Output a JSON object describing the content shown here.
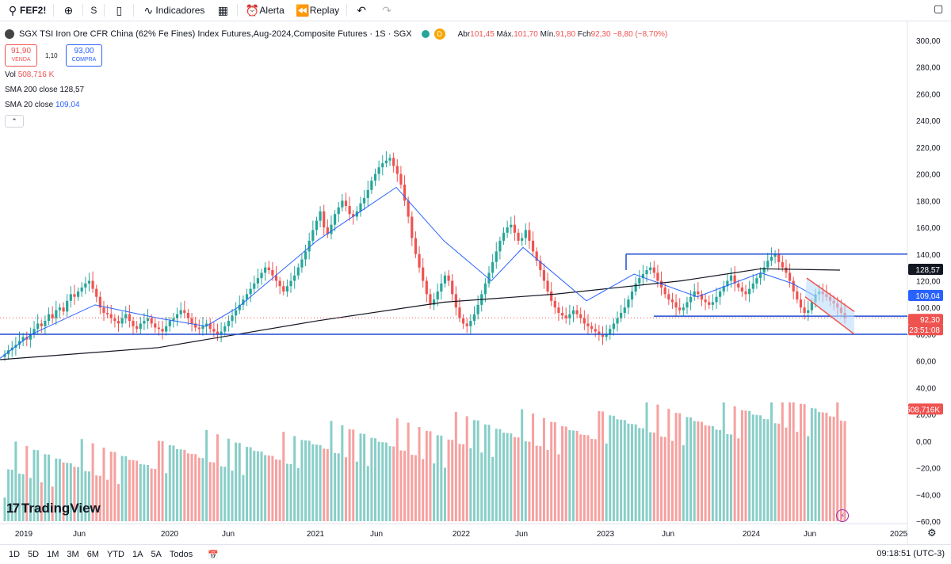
{
  "toolbar": {
    "symbol": "FEF2!",
    "interval": "S",
    "indicators": "Indicadores",
    "alert": "Alerta",
    "replay": "Replay"
  },
  "legend": {
    "title": "SGX TSI Iron Ore CFR China (62% Fe Fines) Index Futures,Aug-2024,Composite Futures · 1S · SGX",
    "d_badge": "D",
    "open_label": "Abr",
    "open": "101,45",
    "high_label": "Máx.",
    "high": "101,70",
    "low_label": "Mín.",
    "low": "91,80",
    "close_label": "Fch",
    "close": "92,30",
    "change": "−8,80 (−8,70%)"
  },
  "trade": {
    "sell_price": "91,90",
    "sell_label": "VENDA",
    "spread": "1,10",
    "buy_price": "93,00",
    "buy_label": "COMPRA"
  },
  "studies": {
    "vol_label": "Vol",
    "vol_value": "508,716 K",
    "sma200_label": "SMA 200 close",
    "sma200_value": "128,57",
    "sma20_label": "SMA 20 close",
    "sma20_value": "109,04"
  },
  "price_axis": [
    "300,00",
    "280,00",
    "260,00",
    "240,00",
    "220,00",
    "200,00",
    "180,00",
    "160,00",
    "140,00",
    "120,00",
    "100,00",
    "80,00",
    "60,00",
    "40,00",
    "20,00",
    "0,00",
    "−20,00",
    "−40,00",
    "−60,00"
  ],
  "price_badges": {
    "sma200": "128,57",
    "sma20": "109,04",
    "last": "92,30",
    "countdown": "23:51:08",
    "volume": "508,716K"
  },
  "time_axis": [
    "2019",
    "Jun",
    "2020",
    "Jun",
    "2021",
    "Jun",
    "2022",
    "Jun",
    "2023",
    "Jun",
    "2024",
    "Jun",
    "2025"
  ],
  "timeframes": [
    "1D",
    "5D",
    "1M",
    "3M",
    "6M",
    "YTD",
    "1A",
    "5A",
    "Todos"
  ],
  "clock": "09:18:51 (UTC-3)",
  "logo_text": "TradingView",
  "colors": {
    "up": "#26a69a",
    "down": "#ef5350",
    "sma20": "#2962ff",
    "sma200": "#131722",
    "hline": "#1e4bd2",
    "channel": "#ef5350",
    "channel_fill": "#bbdefb"
  },
  "chart_data": {
    "type": "candlestick",
    "interval": "1W",
    "price_range": [
      -60,
      300
    ],
    "x_range": [
      "2018-11",
      "2025-02"
    ],
    "closes": [
      65,
      68,
      70,
      72,
      75,
      78,
      76,
      80,
      84,
      88,
      86,
      90,
      95,
      92,
      98,
      100,
      97,
      105,
      110,
      108,
      112,
      115,
      118,
      120,
      114,
      108,
      100,
      96,
      95,
      92,
      90,
      88,
      92,
      95,
      90,
      86,
      84,
      88,
      90,
      92,
      88,
      85,
      84,
      82,
      86,
      90,
      92,
      95,
      98,
      96,
      92,
      88,
      85,
      84,
      86,
      88,
      84,
      82,
      80,
      82,
      86,
      90,
      94,
      98,
      102,
      106,
      110,
      114,
      118,
      122,
      126,
      130,
      128,
      124,
      120,
      116,
      112,
      116,
      120,
      124,
      130,
      136,
      142,
      150,
      158,
      165,
      172,
      160,
      155,
      162,
      170,
      175,
      180,
      176,
      170,
      168,
      172,
      178,
      182,
      188,
      195,
      200,
      205,
      208,
      210,
      212,
      206,
      200,
      192,
      180,
      168,
      152,
      140,
      130,
      120,
      110,
      102,
      106,
      112,
      118,
      124,
      120,
      110,
      100,
      92,
      88,
      86,
      90,
      95,
      102,
      110,
      118,
      126,
      134,
      142,
      150,
      156,
      160,
      162,
      156,
      150,
      152,
      158,
      150,
      142,
      135,
      128,
      120,
      112,
      105,
      100,
      96,
      94,
      92,
      95,
      98,
      95,
      92,
      88,
      86,
      84,
      82,
      80,
      78,
      80,
      84,
      88,
      92,
      96,
      100,
      106,
      112,
      118,
      122,
      125,
      128,
      130,
      126,
      120,
      115,
      110,
      106,
      104,
      100,
      98,
      100,
      104,
      108,
      112,
      110,
      106,
      104,
      102,
      104,
      108,
      112,
      116,
      120,
      124,
      118,
      115,
      112,
      110,
      114,
      118,
      122,
      126,
      130,
      135,
      138,
      140,
      134,
      130,
      126,
      120,
      112,
      106,
      100,
      96,
      98,
      104,
      110,
      112,
      110,
      108,
      105,
      103,
      100,
      96,
      92
    ],
    "sma20_points": [
      [
        0,
        62
      ],
      [
        40,
        80
      ],
      [
        120,
        102
      ],
      [
        200,
        92
      ],
      [
        260,
        86
      ],
      [
        300,
        100
      ],
      [
        400,
        150
      ],
      [
        500,
        190
      ],
      [
        560,
        150
      ],
      [
        620,
        120
      ],
      [
        660,
        145
      ],
      [
        740,
        105
      ],
      [
        800,
        125
      ],
      [
        880,
        108
      ],
      [
        960,
        126
      ],
      [
        1000,
        118
      ],
      [
        1030,
        108
      ]
    ],
    "sma200_points": [
      [
        0,
        61
      ],
      [
        200,
        70
      ],
      [
        400,
        90
      ],
      [
        560,
        104
      ],
      [
        700,
        110
      ],
      [
        860,
        120
      ],
      [
        960,
        129
      ],
      [
        1060,
        128
      ]
    ],
    "horizontal_levels": [
      140,
      80,
      93
    ],
    "volume_range": [
      0,
      600
    ]
  }
}
